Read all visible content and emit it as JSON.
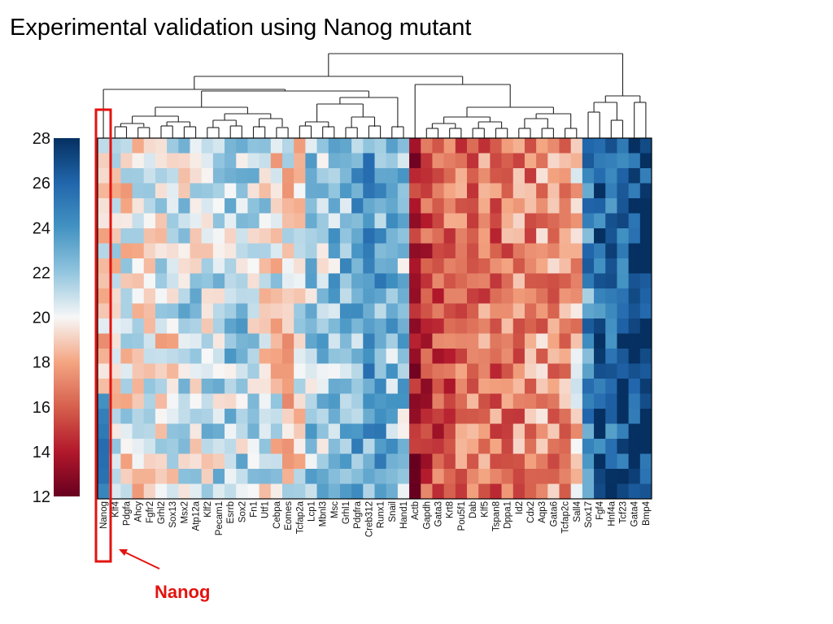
{
  "slide": {
    "title": "Experimental validation using Nanog mutant",
    "callout_label": "Nanog"
  },
  "colors": {
    "highlight": "#e3130f",
    "dark_red": "#67001f",
    "red": "#d6604d",
    "light_red": "#fddbc7",
    "white": "#f7f7f7",
    "light_blue": "#d1e5f0",
    "blue": "#4393c3",
    "dark_blue": "#053061"
  },
  "chart_data": {
    "type": "heatmap",
    "title": "",
    "colorbar": {
      "min": 12,
      "max": 28,
      "ticks": [
        28,
        26,
        24,
        22,
        20,
        18,
        16,
        14,
        12
      ],
      "colormap": "red-white-blue (low = dark red, high = dark blue)"
    },
    "highlighted_column": "Nanog",
    "dendrogram": true,
    "rows": 24,
    "columns": [
      "Nanog",
      "Klf4",
      "Pdgfa",
      "Ahcy",
      "Fgfr2",
      "Grhl2",
      "Sox13",
      "Msx2",
      "Atp12a",
      "Klf2",
      "Pecam1",
      "Esrrb",
      "Sox2",
      "Fn1",
      "Utf1",
      "Cebpa",
      "Eomes",
      "Tcfap2a",
      "Lcp1",
      "Mbnl3",
      "Msc",
      "Grhl1",
      "Pdgfra",
      "Creb312",
      "Runx1",
      "Snail",
      "Hand1",
      "Actb",
      "Gapdh",
      "Gata3",
      "Krt8",
      "Pou5f1",
      "Dab",
      "Klf5",
      "Tspan8",
      "Dppa1",
      "Id2",
      "Cdx2",
      "Aqp3",
      "Gata6",
      "Tcfap2c",
      "Sall4",
      "Sox17",
      "Fgf4",
      "Hnf4a",
      "Tcf23",
      "Gata4",
      "Bmp4"
    ],
    "column_mean_levels": [
      19,
      20,
      20,
      19.5,
      20,
      20,
      20,
      21,
      21,
      21,
      21,
      21.5,
      21.5,
      21,
      20.5,
      20,
      19.5,
      20,
      22,
      21.5,
      22,
      22.5,
      23,
      23.5,
      23,
      22,
      22,
      13.5,
      15,
      15.5,
      16,
      16.5,
      16.5,
      16.5,
      16.5,
      17,
      17,
      17,
      17.5,
      17.5,
      17.5,
      18.5,
      24,
      26,
      26,
      26.5,
      27.5,
      27.5
    ],
    "note_values": "cell values approximate; generated around each column's mean level"
  }
}
